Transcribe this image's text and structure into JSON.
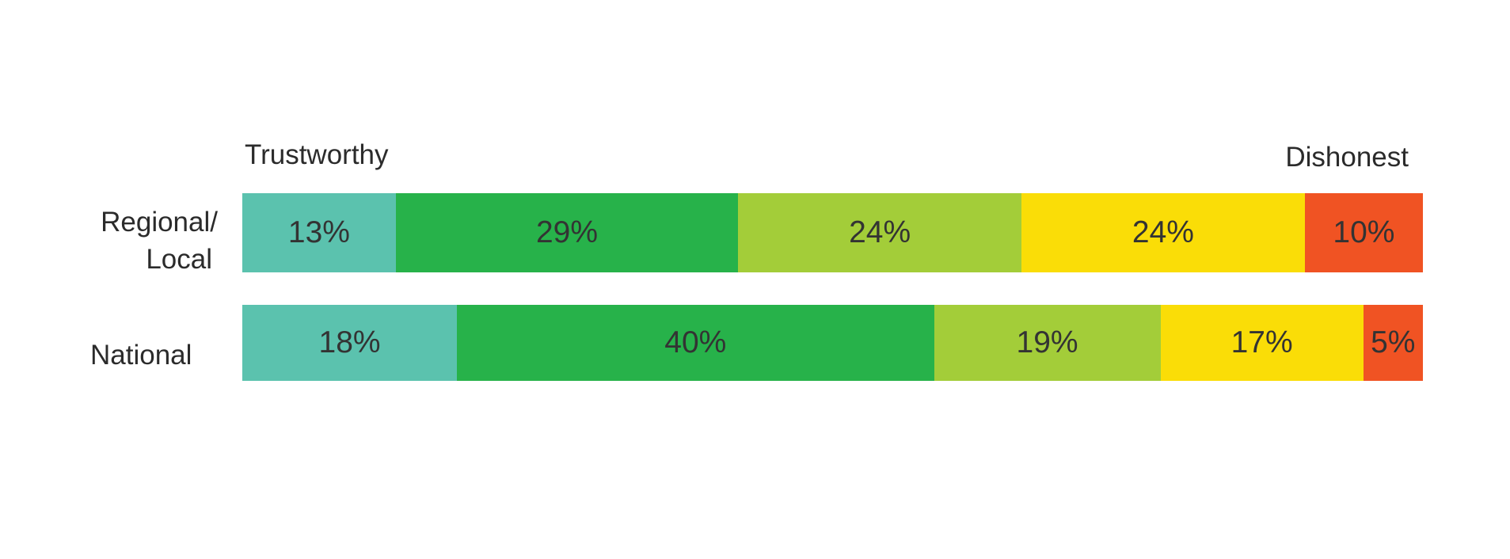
{
  "chart_data": {
    "type": "stacked-bar-horizontal",
    "scale_labels": {
      "left": "Trustworthy",
      "right": "Dishonest"
    },
    "categories": [
      "Regional/\nLocal",
      "National"
    ],
    "category_lines": [
      [
        "Regional/",
        "Local"
      ],
      [
        "National"
      ]
    ],
    "colors": [
      "#5BC2AE",
      "#27B24A",
      "#A3CD39",
      "#FADD07",
      "#F05323"
    ],
    "rows": [
      {
        "values": [
          13,
          29,
          24,
          24,
          10
        ],
        "labels": [
          "13%",
          "29%",
          "24%",
          "24%",
          "10%"
        ]
      },
      {
        "values": [
          18,
          40,
          19,
          17,
          5
        ],
        "labels": [
          "18%",
          "40%",
          "19%",
          "17%",
          "5%"
        ]
      }
    ],
    "grid": false,
    "legend": "none"
  }
}
